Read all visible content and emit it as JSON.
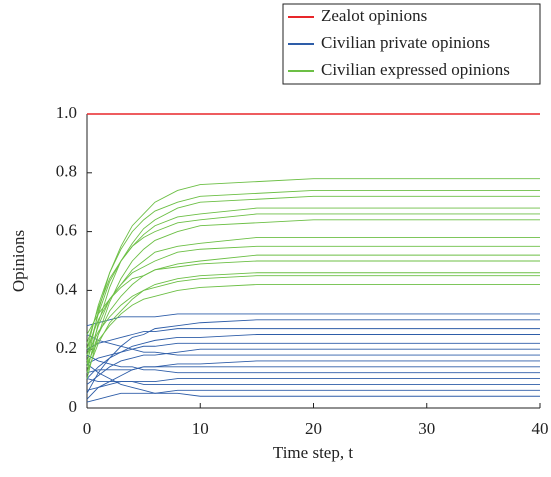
{
  "chart_data": {
    "type": "line",
    "xlabel": "Time step, t",
    "ylabel": "Opinions",
    "x": [
      0,
      1,
      2,
      3,
      4,
      5,
      6,
      8,
      10,
      15,
      20,
      40
    ],
    "xlim": [
      0,
      40
    ],
    "xticks": [
      0,
      10,
      20,
      30,
      40
    ],
    "ylim": [
      0,
      1
    ],
    "yticks": [
      0,
      0.2,
      0.4,
      0.6,
      0.8,
      {
        "value": 1,
        "label": "1.0"
      }
    ],
    "legend": "upper-right",
    "series": [
      {
        "name": "Zealot opinions",
        "color": "#e8262a",
        "lines": [
          [
            1,
            1,
            1,
            1,
            1,
            1,
            1,
            1,
            1,
            1,
            1,
            1
          ]
        ]
      },
      {
        "name": "Civilian private opinions",
        "color": "#2e5da8",
        "lines": [
          [
            0.28,
            0.29,
            0.3,
            0.31,
            0.31,
            0.31,
            0.31,
            0.32,
            0.32,
            0.32,
            0.32,
            0.32
          ],
          [
            0.05,
            0.12,
            0.17,
            0.21,
            0.24,
            0.25,
            0.27,
            0.28,
            0.29,
            0.3,
            0.3,
            0.3
          ],
          [
            0.2,
            0.22,
            0.23,
            0.24,
            0.25,
            0.26,
            0.26,
            0.27,
            0.27,
            0.27,
            0.27,
            0.27
          ],
          [
            0.1,
            0.14,
            0.17,
            0.19,
            0.21,
            0.22,
            0.23,
            0.24,
            0.24,
            0.25,
            0.25,
            0.25
          ],
          [
            0.15,
            0.17,
            0.18,
            0.19,
            0.2,
            0.21,
            0.21,
            0.22,
            0.22,
            0.22,
            0.22,
            0.22
          ],
          [
            0.08,
            0.11,
            0.14,
            0.16,
            0.17,
            0.18,
            0.18,
            0.19,
            0.2,
            0.2,
            0.2,
            0.2
          ],
          [
            0.25,
            0.23,
            0.22,
            0.21,
            0.2,
            0.19,
            0.19,
            0.18,
            0.18,
            0.18,
            0.18,
            0.18
          ],
          [
            0.03,
            0.07,
            0.09,
            0.11,
            0.13,
            0.14,
            0.14,
            0.15,
            0.15,
            0.16,
            0.16,
            0.16
          ],
          [
            0.12,
            0.13,
            0.13,
            0.13,
            0.13,
            0.14,
            0.14,
            0.14,
            0.14,
            0.14,
            0.14,
            0.14
          ],
          [
            0.18,
            0.16,
            0.15,
            0.14,
            0.14,
            0.13,
            0.13,
            0.12,
            0.12,
            0.12,
            0.12,
            0.12
          ],
          [
            0.06,
            0.07,
            0.08,
            0.09,
            0.09,
            0.09,
            0.09,
            0.1,
            0.1,
            0.1,
            0.1,
            0.1
          ],
          [
            0.1,
            0.09,
            0.09,
            0.09,
            0.09,
            0.08,
            0.08,
            0.08,
            0.08,
            0.08,
            0.08,
            0.08
          ],
          [
            0.02,
            0.03,
            0.04,
            0.05,
            0.05,
            0.05,
            0.05,
            0.06,
            0.06,
            0.06,
            0.06,
            0.06
          ],
          [
            0.15,
            0.12,
            0.1,
            0.08,
            0.07,
            0.06,
            0.05,
            0.05,
            0.04,
            0.04,
            0.04,
            0.04
          ]
        ]
      },
      {
        "name": "Civilian expressed opinions",
        "color": "#6cbf45",
        "lines": [
          [
            0.15,
            0.33,
            0.46,
            0.55,
            0.62,
            0.66,
            0.7,
            0.74,
            0.76,
            0.77,
            0.78,
            0.78
          ],
          [
            0.2,
            0.35,
            0.46,
            0.54,
            0.6,
            0.64,
            0.67,
            0.7,
            0.72,
            0.73,
            0.74,
            0.74
          ],
          [
            0.12,
            0.29,
            0.41,
            0.5,
            0.56,
            0.61,
            0.64,
            0.68,
            0.7,
            0.71,
            0.72,
            0.72
          ],
          [
            0.18,
            0.32,
            0.43,
            0.5,
            0.55,
            0.59,
            0.62,
            0.65,
            0.66,
            0.68,
            0.68,
            0.68
          ],
          [
            0.22,
            0.34,
            0.44,
            0.5,
            0.55,
            0.58,
            0.6,
            0.63,
            0.64,
            0.66,
            0.66,
            0.66
          ],
          [
            0.1,
            0.25,
            0.36,
            0.44,
            0.5,
            0.54,
            0.57,
            0.6,
            0.62,
            0.63,
            0.64,
            0.64
          ],
          [
            0.16,
            0.28,
            0.37,
            0.42,
            0.47,
            0.5,
            0.53,
            0.55,
            0.56,
            0.58,
            0.58,
            0.58
          ],
          [
            0.2,
            0.3,
            0.37,
            0.42,
            0.46,
            0.48,
            0.5,
            0.53,
            0.54,
            0.55,
            0.55,
            0.55
          ],
          [
            0.14,
            0.25,
            0.33,
            0.38,
            0.42,
            0.45,
            0.47,
            0.49,
            0.5,
            0.52,
            0.52,
            0.52
          ],
          [
            0.25,
            0.32,
            0.37,
            0.41,
            0.44,
            0.45,
            0.47,
            0.48,
            0.49,
            0.5,
            0.5,
            0.5
          ],
          [
            0.12,
            0.22,
            0.29,
            0.33,
            0.37,
            0.4,
            0.42,
            0.44,
            0.45,
            0.46,
            0.46,
            0.46
          ],
          [
            0.18,
            0.26,
            0.31,
            0.35,
            0.38,
            0.4,
            0.41,
            0.43,
            0.44,
            0.45,
            0.45,
            0.45
          ],
          [
            0.15,
            0.23,
            0.28,
            0.32,
            0.35,
            0.37,
            0.38,
            0.4,
            0.41,
            0.42,
            0.42,
            0.42
          ]
        ]
      }
    ]
  }
}
